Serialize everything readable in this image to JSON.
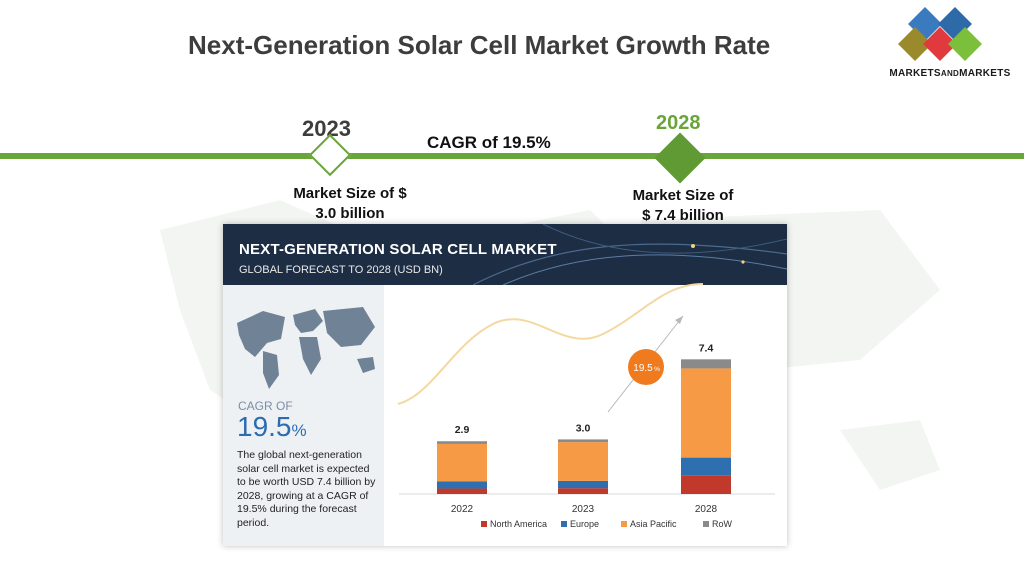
{
  "page": {
    "title": "Next-Generation Solar Cell Market Growth Rate",
    "logo_text_main": "MARKETS",
    "logo_text_and": "AND",
    "logo_text_end": "MARKETS"
  },
  "timeline": {
    "start_year": "2023",
    "end_year": "2028",
    "cagr": "CAGR of 19.5%",
    "start_size_line1": "Market Size of $",
    "start_size_line2": "3.0 billion",
    "end_size_line1": "Market Size of",
    "end_size_line2": "$ 7.4 billion",
    "accent_color": "#6aa53a"
  },
  "card": {
    "title": "NEXT-GENERATION SOLAR CELL MARKET",
    "subtitle": "GLOBAL FORECAST TO 2028 (USD BN)",
    "cagr_label": "CAGR OF",
    "cagr_value": "19.5",
    "cagr_unit": "%",
    "description": "The global next-generation solar cell market is expected to be worth USD 7.4 billion by 2028, growing at a CAGR of 19.5% during the forecast period.",
    "growth_badge": "19.5",
    "growth_badge_unit": "%"
  },
  "chart_data": {
    "type": "bar",
    "stacked": true,
    "categories": [
      "2022",
      "2023",
      "2028"
    ],
    "totals": [
      "2.9",
      "3.0",
      "7.4"
    ],
    "series": [
      {
        "name": "North America",
        "color": "#c0392b",
        "values": [
          0.3,
          0.32,
          1.0
        ]
      },
      {
        "name": "Europe",
        "color": "#2e6fb0",
        "values": [
          0.4,
          0.4,
          1.0
        ]
      },
      {
        "name": "Asia Pacific",
        "color": "#f79a45",
        "values": [
          2.05,
          2.13,
          4.9
        ]
      },
      {
        "name": "RoW",
        "color": "#8a8a8a",
        "values": [
          0.15,
          0.15,
          0.5
        ]
      }
    ],
    "ylim": [
      0,
      8
    ],
    "legend_position": "bottom"
  }
}
